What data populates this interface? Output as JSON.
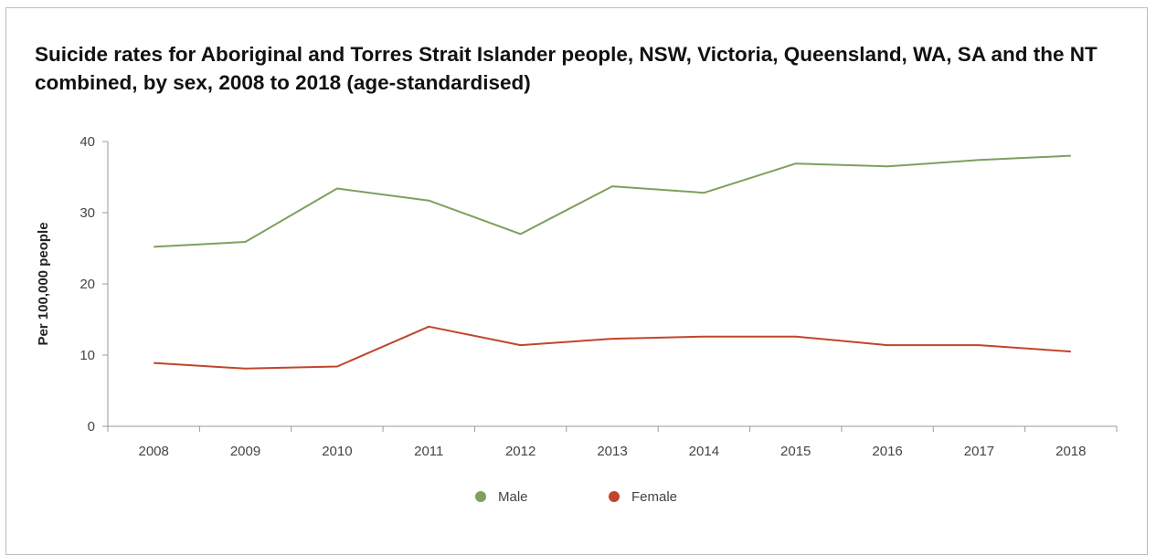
{
  "chart_data": {
    "type": "line",
    "title": "Suicide rates for Aboriginal and Torres Strait Islander people, NSW, Victoria, Queensland, WA, SA and the NT combined, by sex, 2008 to 2018 (age-standardised)",
    "xlabel": "",
    "ylabel": "Per 100,000 people",
    "x": [
      "2008",
      "2009",
      "2010",
      "2011",
      "2012",
      "2013",
      "2014",
      "2015",
      "2016",
      "2017",
      "2018"
    ],
    "yticks": [
      "0",
      "10",
      "20",
      "30",
      "40"
    ],
    "ylim": [
      0,
      40
    ],
    "grid": false,
    "legend_position": "bottom",
    "series": [
      {
        "name": "Male",
        "color": "#7da05e",
        "values": [
          25.2,
          25.9,
          33.4,
          31.7,
          27.0,
          33.7,
          32.8,
          36.9,
          36.5,
          37.4,
          38.0
        ]
      },
      {
        "name": "Female",
        "color": "#c0452b",
        "values": [
          8.9,
          8.1,
          8.4,
          14.0,
          11.4,
          12.3,
          12.6,
          12.6,
          11.4,
          11.4,
          10.5
        ]
      }
    ]
  }
}
